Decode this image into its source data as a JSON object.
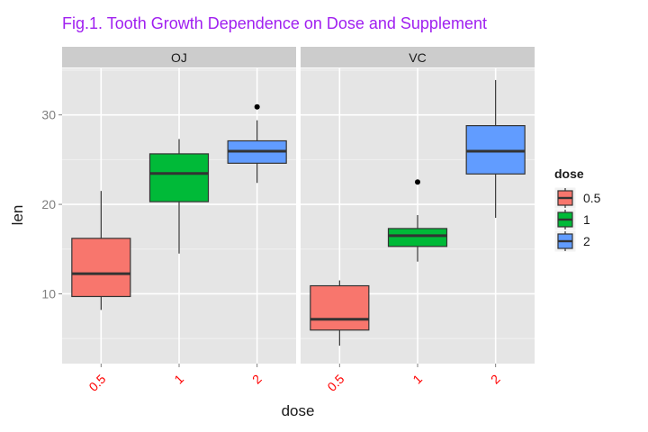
{
  "chart_data": {
    "type": "boxplot",
    "title": "Fig.1. Tooth Growth Dependence on Dose and Supplement",
    "xlabel": "dose",
    "ylabel": "len",
    "ylim": [
      2.2,
      35.2
    ],
    "yticks": [
      10,
      20,
      30
    ],
    "categories": [
      "0.5",
      "1",
      "2"
    ],
    "facets": [
      {
        "name": "OJ",
        "boxes": [
          {
            "dose": "0.5",
            "min": 8.2,
            "q1": 9.7,
            "median": 12.25,
            "q3": 16.2,
            "max": 21.5,
            "outliers": []
          },
          {
            "dose": "1",
            "min": 14.5,
            "q1": 20.3,
            "median": 23.45,
            "q3": 25.65,
            "max": 27.3,
            "outliers": []
          },
          {
            "dose": "2",
            "min": 22.4,
            "q1": 24.6,
            "median": 25.95,
            "q3": 27.1,
            "max": 29.4,
            "outliers": [
              30.9
            ]
          }
        ]
      },
      {
        "name": "VC",
        "boxes": [
          {
            "dose": "0.5",
            "min": 4.2,
            "q1": 5.95,
            "median": 7.15,
            "q3": 10.9,
            "max": 11.5,
            "outliers": []
          },
          {
            "dose": "1",
            "min": 13.6,
            "q1": 15.3,
            "median": 16.5,
            "q3": 17.3,
            "max": 18.8,
            "outliers": [
              22.5
            ]
          },
          {
            "dose": "2",
            "min": 18.5,
            "q1": 23.4,
            "median": 25.95,
            "q3": 28.8,
            "max": 33.9,
            "outliers": []
          }
        ]
      }
    ],
    "legend": {
      "title": "dose",
      "position": "right",
      "items": [
        {
          "label": "0.5",
          "color": "#F8766D"
        },
        {
          "label": "1",
          "color": "#00BA38"
        },
        {
          "label": "2",
          "color": "#619CFF"
        }
      ]
    },
    "grid": true,
    "colors": {
      "title": "#a020f0",
      "x_tick_labels": "#ff0000",
      "panel_background": "#e5e5e5",
      "strip_background": "#cccccc"
    }
  }
}
